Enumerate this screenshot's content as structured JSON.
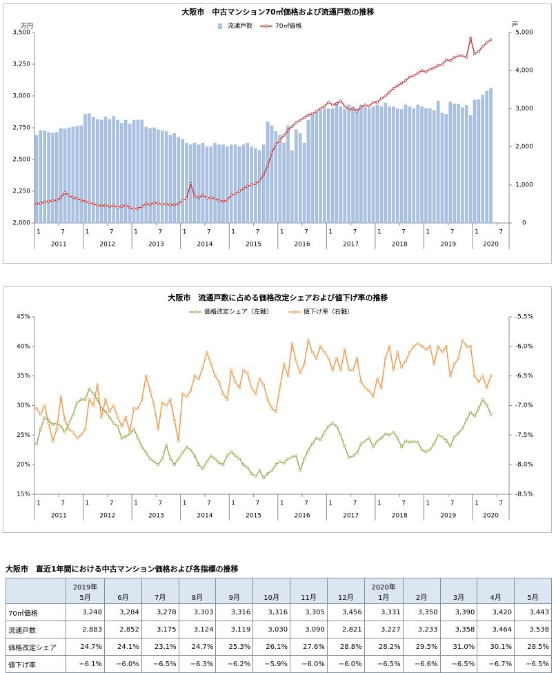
{
  "chart_data": [
    {
      "type": "combo",
      "title": "大阪市　中古マンション70㎡価格および流通戸数の推移",
      "y_label": "万円",
      "y2_label": "戸",
      "categories": [
        "1",
        null,
        null,
        null,
        null,
        null,
        "7",
        null,
        null,
        null,
        null,
        null,
        "1",
        null,
        null,
        null,
        null,
        null,
        "7",
        null,
        null,
        null,
        null,
        null,
        "1",
        null,
        null,
        null,
        null,
        null,
        "7",
        null,
        null,
        null,
        null,
        null,
        "1",
        null,
        null,
        null,
        null,
        null,
        "7",
        null,
        null,
        null,
        null,
        null,
        "1",
        null,
        null,
        null,
        null,
        null,
        "7",
        null,
        null,
        null,
        null,
        null,
        "1",
        null,
        null,
        null,
        null,
        null,
        "7",
        null,
        null,
        null,
        null,
        null,
        "1",
        null,
        null,
        null,
        null,
        null,
        "7",
        null,
        null,
        null,
        null,
        null,
        "1",
        null,
        null,
        null,
        null,
        null,
        "7",
        null,
        null,
        null,
        null,
        null,
        "1",
        null,
        null,
        null,
        null,
        null,
        "7",
        null,
        null,
        null,
        null,
        null,
        "1",
        null,
        null,
        null,
        null,
        null,
        "7",
        null,
        null
      ],
      "year_labels": [
        "2011",
        "2012",
        "2013",
        "2014",
        "2015",
        "2016",
        "2017",
        "2018",
        "2019",
        "2020"
      ],
      "ylim": [
        2000,
        3500
      ],
      "yticks": [
        {
          "value": 2000,
          "label": "2,000"
        },
        {
          "value": 2250,
          "label": "2,250"
        },
        {
          "value": 2500,
          "label": "2,500"
        },
        {
          "value": 2750,
          "label": "2,750"
        },
        {
          "value": 3000,
          "label": "3,000"
        },
        {
          "value": 3250,
          "label": "3,250"
        },
        {
          "value": 3500,
          "label": "3,500"
        }
      ],
      "y2lim": [
        0,
        5000
      ],
      "y2ticks": [
        0,
        {
          "value": 1000,
          "label": "1,000"
        },
        {
          "value": 2000,
          "label": "2,000"
        },
        {
          "value": 3000,
          "label": "3,000"
        },
        {
          "value": 4000,
          "label": "4,000"
        },
        {
          "value": 5000,
          "label": "5,000"
        }
      ],
      "grid": false,
      "series": [
        {
          "name": "流通戸数",
          "type": "bar",
          "axis": "y2",
          "color": "#a9c1e3",
          "values": [
            2300,
            2420,
            2420,
            2380,
            2350,
            2380,
            2480,
            2470,
            2500,
            2520,
            2540,
            2550,
            2850,
            2870,
            2780,
            2720,
            2700,
            2780,
            2720,
            2800,
            2700,
            2620,
            2700,
            2600,
            2700,
            2700,
            2700,
            2520,
            2480,
            2500,
            2450,
            2420,
            2400,
            2300,
            2350,
            2250,
            2200,
            2100,
            2050,
            2100,
            2050,
            2100,
            2000,
            2000,
            2100,
            2050,
            2050,
            2000,
            2050,
            2050,
            2000,
            2050,
            2100,
            2000,
            1950,
            1900,
            2050,
            2650,
            2550,
            2400,
            2300,
            2100,
            2550,
            1900,
            2450,
            2350,
            2100,
            2700,
            2850,
            2900,
            2950,
            3000,
            3000,
            3000,
            3150,
            3050,
            2980,
            3100,
            3050,
            3000,
            3100,
            3050,
            3000,
            3050,
            3100,
            3050,
            3150,
            3050,
            3050,
            3000,
            2980,
            3100,
            3050,
            3000,
            3100,
            3050,
            3000,
            3000,
            2950,
            3200,
            2883,
            2852,
            3175,
            3124,
            3119,
            3030,
            3090,
            2821,
            3227,
            3233,
            3358,
            3464,
            3538,
            null,
            null,
            null,
            null
          ]
        },
        {
          "name": "70㎡価格",
          "type": "line",
          "color": "#c9393c",
          "values": [
            2150,
            2155,
            2165,
            2170,
            2175,
            2180,
            2200,
            2240,
            2215,
            2200,
            2190,
            2180,
            2170,
            2160,
            2150,
            2140,
            2135,
            2140,
            2130,
            2135,
            2125,
            2130,
            2140,
            2120,
            2110,
            2115,
            2130,
            2150,
            2145,
            2160,
            2155,
            2145,
            2150,
            2140,
            2145,
            2150,
            2180,
            2190,
            2310,
            2210,
            2200,
            2220,
            2195,
            2200,
            2190,
            2175,
            2170,
            2180,
            2220,
            2230,
            2250,
            2270,
            2290,
            2300,
            2310,
            2330,
            2380,
            2450,
            2550,
            2620,
            2650,
            2690,
            2730,
            2760,
            2790,
            2810,
            2830,
            2850,
            2860,
            2880,
            2900,
            2920,
            2950,
            2930,
            2940,
            2960,
            2920,
            2890,
            2900,
            2880,
            2910,
            2930,
            2920,
            2950,
            2950,
            2980,
            3000,
            3030,
            3060,
            3080,
            3100,
            3120,
            3150,
            3160,
            3180,
            3200,
            3190,
            3210,
            3220,
            3240,
            3248,
            3284,
            3278,
            3303,
            3316,
            3316,
            3305,
            3456,
            3331,
            3350,
            3390,
            3420,
            3443,
            null,
            null,
            null,
            null
          ]
        }
      ]
    },
    {
      "type": "line",
      "title": "大阪市　流通戸数に占める価格改定シェアおよび値下げ率の推移",
      "categories": [
        "1",
        null,
        null,
        null,
        null,
        null,
        "7",
        null,
        null,
        null,
        null,
        null,
        "1",
        null,
        null,
        null,
        null,
        null,
        "7",
        null,
        null,
        null,
        null,
        null,
        "1",
        null,
        null,
        null,
        null,
        null,
        "7",
        null,
        null,
        null,
        null,
        null,
        "1",
        null,
        null,
        null,
        null,
        null,
        "7",
        null,
        null,
        null,
        null,
        null,
        "1",
        null,
        null,
        null,
        null,
        null,
        "7",
        null,
        null,
        null,
        null,
        null,
        "1",
        null,
        null,
        null,
        null,
        null,
        "7",
        null,
        null,
        null,
        null,
        null,
        "1",
        null,
        null,
        null,
        null,
        null,
        "7",
        null,
        null,
        null,
        null,
        null,
        "1",
        null,
        null,
        null,
        null,
        null,
        "7",
        null,
        null,
        null,
        null,
        null,
        "1",
        null,
        null,
        null,
        null,
        null,
        "7",
        null,
        null,
        null,
        null,
        null,
        "1",
        null,
        null,
        null,
        null,
        null,
        "7",
        null,
        null
      ],
      "year_labels": [
        "2011",
        "2012",
        "2013",
        "2014",
        "2015",
        "2016",
        "2017",
        "2018",
        "2019",
        "2020"
      ],
      "ylim": [
        15,
        45
      ],
      "yticks": [
        {
          "value": 15,
          "label": "15%"
        },
        {
          "value": 20,
          "label": "20%"
        },
        {
          "value": 25,
          "label": "25%"
        },
        {
          "value": 30,
          "label": "30%"
        },
        {
          "value": 35,
          "label": "35%"
        },
        {
          "value": 40,
          "label": "40%"
        },
        {
          "value": 45,
          "label": "45%"
        }
      ],
      "y2lim": [
        -8.5,
        -5.5
      ],
      "y2ticks": [
        {
          "value": -8.5,
          "label": "-8.5%"
        },
        {
          "value": -8,
          "label": "-8.0%"
        },
        {
          "value": -7.5,
          "label": "-7.5%"
        },
        {
          "value": -7,
          "label": "-7.0%"
        },
        {
          "value": -6.5,
          "label": "-6.5%"
        },
        {
          "value": -6,
          "label": "-6.0%"
        },
        {
          "value": -5.5,
          "label": "-5.5%"
        }
      ],
      "grid": false,
      "series": [
        {
          "name": "価格改定シェア（左軸）",
          "type": "line",
          "color": "#8db04a",
          "values": [
            23.5,
            26,
            28,
            27.5,
            26.8,
            27,
            26.5,
            25.5,
            27,
            28.5,
            30.5,
            31,
            31,
            32.8,
            32,
            31,
            29.5,
            29,
            28,
            27,
            26.5,
            24.5,
            24.8,
            25.2,
            26,
            24.5,
            23,
            22,
            21,
            20.5,
            20,
            21,
            23.3,
            21,
            20,
            21,
            22,
            23,
            22.5,
            21.5,
            20,
            19.3,
            20.5,
            21.5,
            21,
            20.3,
            20,
            21.5,
            22.2,
            21.5,
            21,
            20,
            19.5,
            18.5,
            18,
            19,
            17.8,
            18.5,
            19,
            20,
            20.5,
            20.3,
            21,
            21.3,
            21.5,
            19,
            21,
            22.5,
            23.5,
            24.5,
            24.2,
            25.5,
            26.5,
            27,
            26.5,
            25,
            23,
            21.2,
            21.5,
            22,
            23.5,
            24,
            24.5,
            23,
            24,
            24.5,
            25.2,
            25,
            25.5,
            24.5,
            23,
            24,
            23.8,
            23.9,
            23.8,
            22.5,
            22.2,
            22.5,
            23.5,
            25,
            24.7,
            24.1,
            23.1,
            24.7,
            25.3,
            26.1,
            27.6,
            28.8,
            28.2,
            29.5,
            31.0,
            30.1,
            28.5,
            null,
            null,
            null,
            null
          ]
        },
        {
          "name": "値下げ率（右軸）",
          "type": "line",
          "axis": "y2",
          "color": "#f79646",
          "values": [
            -7.05,
            -7.15,
            -7.0,
            -7.3,
            -7.6,
            -7.4,
            -6.85,
            -7.25,
            -7.4,
            -7.45,
            -7.55,
            -7.5,
            -7.4,
            -6.9,
            -7.0,
            -6.65,
            -7.2,
            -6.9,
            -7.1,
            -7.0,
            -7.2,
            -7.35,
            -7.2,
            -7.45,
            -7.05,
            -7.05,
            -6.9,
            -6.5,
            -6.75,
            -7.0,
            -7.4,
            -6.95,
            -7.0,
            -6.9,
            -7.25,
            -7.6,
            -6.8,
            -6.85,
            -6.75,
            -6.5,
            -6.55,
            -6.35,
            -6.1,
            -6.3,
            -6.5,
            -6.6,
            -6.8,
            -6.9,
            -6.4,
            -6.6,
            -6.7,
            -6.4,
            -6.45,
            -6.7,
            -6.8,
            -6.55,
            -6.65,
            -6.9,
            -7.05,
            -7.1,
            -6.7,
            -6.3,
            -6.5,
            -5.95,
            -6.25,
            -6.45,
            -6.3,
            -5.9,
            -6.1,
            -6.2,
            -6.0,
            -6.1,
            -6.2,
            -6.4,
            -6.2,
            -6.4,
            -6.05,
            -6.4,
            -6.4,
            -6.2,
            -6.6,
            -6.7,
            -6.75,
            -6.85,
            -6.55,
            -6.7,
            -6.2,
            -6.0,
            -6.4,
            -6.1,
            -6.35,
            -6.25,
            -6.1,
            -6.0,
            -5.95,
            -6.0,
            -6.05,
            -6.0,
            -6.3,
            -6.0,
            -6.1,
            -6.0,
            -6.5,
            -6.3,
            -6.2,
            -5.9,
            -6.0,
            -6.0,
            -6.5,
            -6.6,
            -6.5,
            -6.7,
            -6.5,
            null,
            null,
            null,
            null
          ]
        }
      ]
    }
  ],
  "table": {
    "title": "大阪市　直近1年間における中古マンション価格および各指標の推移",
    "years": [
      {
        "col": 0,
        "label": "2019年"
      },
      {
        "col": 8,
        "label": "2020年"
      }
    ],
    "months": [
      "5月",
      "6月",
      "7月",
      "8月",
      "9月",
      "10月",
      "11月",
      "12月",
      "1月",
      "2月",
      "3月",
      "4月",
      "5月"
    ],
    "rows": [
      {
        "label": "70㎡価格",
        "values": [
          "3,248",
          "3,284",
          "3,278",
          "3,303",
          "3,316",
          "3,316",
          "3,305",
          "3,456",
          "3,331",
          "3,350",
          "3,390",
          "3,420",
          "3,443"
        ]
      },
      {
        "label": "流通戸数",
        "values": [
          "2,883",
          "2,852",
          "3,175",
          "3,124",
          "3,119",
          "3,030",
          "3,090",
          "2,821",
          "3,227",
          "3,233",
          "3,358",
          "3,464",
          "3,538"
        ]
      },
      {
        "label": "価格改定シェア",
        "values": [
          "24.7%",
          "24.1%",
          "23.1%",
          "24.7%",
          "25.3%",
          "26.1%",
          "27.6%",
          "28.8%",
          "28.2%",
          "29.5%",
          "31.0%",
          "30.1%",
          "28.5%"
        ]
      },
      {
        "label": "値下げ率",
        "values": [
          "−6.1%",
          "−6.0%",
          "−6.5%",
          "−6.3%",
          "−6.2%",
          "−5.9%",
          "−6.0%",
          "−6.0%",
          "−6.5%",
          "−6.6%",
          "−6.5%",
          "−6.7%",
          "−6.5%"
        ]
      }
    ]
  }
}
